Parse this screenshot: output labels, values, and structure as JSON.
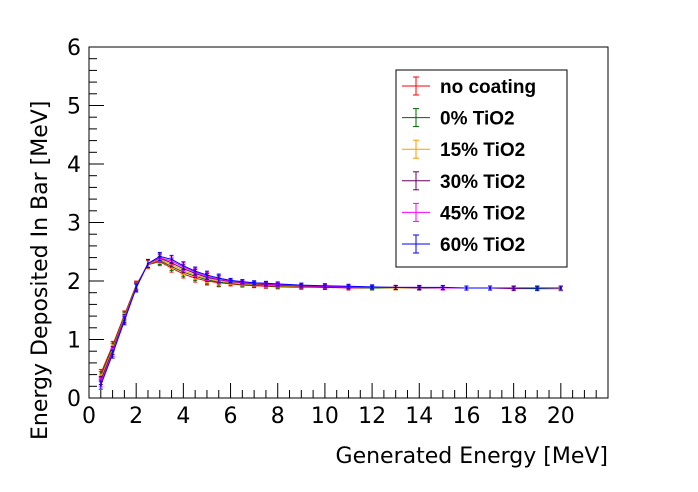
{
  "chart_data": {
    "type": "line",
    "xlabel": "Generated Energy [MeV]",
    "ylabel": "Energy Deposited In Bar [MeV]",
    "xlim": [
      0,
      22
    ],
    "ylim": [
      0,
      6
    ],
    "xticks": [
      "0",
      "2",
      "4",
      "6",
      "8",
      "10",
      "12",
      "14",
      "16",
      "18",
      "20"
    ],
    "yticks": [
      "0",
      "1",
      "2",
      "3",
      "4",
      "5",
      "6"
    ],
    "grid": false,
    "legend_position": "top-right",
    "x": [
      0.5,
      1.0,
      1.5,
      2.0,
      2.5,
      3.0,
      3.5,
      4.0,
      4.5,
      5.0,
      5.5,
      6.0,
      6.5,
      7.0,
      7.5,
      8.0,
      9.0,
      10.0,
      11.0,
      12.0,
      13.0,
      14.0,
      15.0,
      16.0,
      17.0,
      18.0,
      19.0,
      20.0
    ],
    "series": [
      {
        "name": "no coating",
        "color": "#ff0000",
        "values": [
          0.42,
          0.9,
          1.42,
          1.93,
          2.28,
          2.33,
          2.22,
          2.12,
          2.05,
          2.0,
          1.97,
          1.95,
          1.93,
          1.92,
          1.91,
          1.9,
          1.89,
          1.89,
          1.88,
          1.88,
          1.88,
          1.88,
          1.88,
          1.88,
          1.88,
          1.87,
          1.87,
          1.87
        ]
      },
      {
        "name": "0% TiO2",
        "color": "#006600",
        "values": [
          0.38,
          0.87,
          1.4,
          1.92,
          2.29,
          2.35,
          2.25,
          2.15,
          2.08,
          2.02,
          1.98,
          1.96,
          1.94,
          1.93,
          1.92,
          1.91,
          1.9,
          1.89,
          1.89,
          1.88,
          1.88,
          1.88,
          1.88,
          1.88,
          1.88,
          1.88,
          1.87,
          1.87
        ]
      },
      {
        "name": "15% TiO2",
        "color": "#ff9900",
        "values": [
          0.34,
          0.84,
          1.38,
          1.91,
          2.29,
          2.37,
          2.28,
          2.18,
          2.1,
          2.04,
          2.0,
          1.97,
          1.95,
          1.94,
          1.93,
          1.92,
          1.9,
          1.9,
          1.89,
          1.89,
          1.88,
          1.88,
          1.88,
          1.88,
          1.88,
          1.88,
          1.88,
          1.87
        ]
      },
      {
        "name": "30% TiO2",
        "color": "#660066",
        "values": [
          0.3,
          0.81,
          1.36,
          1.9,
          2.3,
          2.39,
          2.31,
          2.21,
          2.13,
          2.06,
          2.02,
          1.99,
          1.97,
          1.95,
          1.94,
          1.93,
          1.91,
          1.9,
          1.89,
          1.89,
          1.89,
          1.88,
          1.88,
          1.88,
          1.88,
          1.88,
          1.88,
          1.88
        ]
      },
      {
        "name": "45% TiO2",
        "color": "#ff00ff",
        "values": [
          0.26,
          0.78,
          1.34,
          1.89,
          2.3,
          2.4,
          2.34,
          2.24,
          2.15,
          2.08,
          2.03,
          2.0,
          1.98,
          1.96,
          1.95,
          1.94,
          1.92,
          1.91,
          1.9,
          1.89,
          1.89,
          1.89,
          1.88,
          1.88,
          1.88,
          1.88,
          1.88,
          1.88
        ]
      },
      {
        "name": "60% TiO2",
        "color": "#0000ff",
        "values": [
          0.22,
          0.75,
          1.32,
          1.88,
          2.3,
          2.42,
          2.37,
          2.26,
          2.17,
          2.1,
          2.05,
          2.01,
          1.99,
          1.97,
          1.96,
          1.95,
          1.93,
          1.92,
          1.91,
          1.9,
          1.89,
          1.89,
          1.89,
          1.88,
          1.88,
          1.88,
          1.88,
          1.88
        ]
      }
    ]
  }
}
